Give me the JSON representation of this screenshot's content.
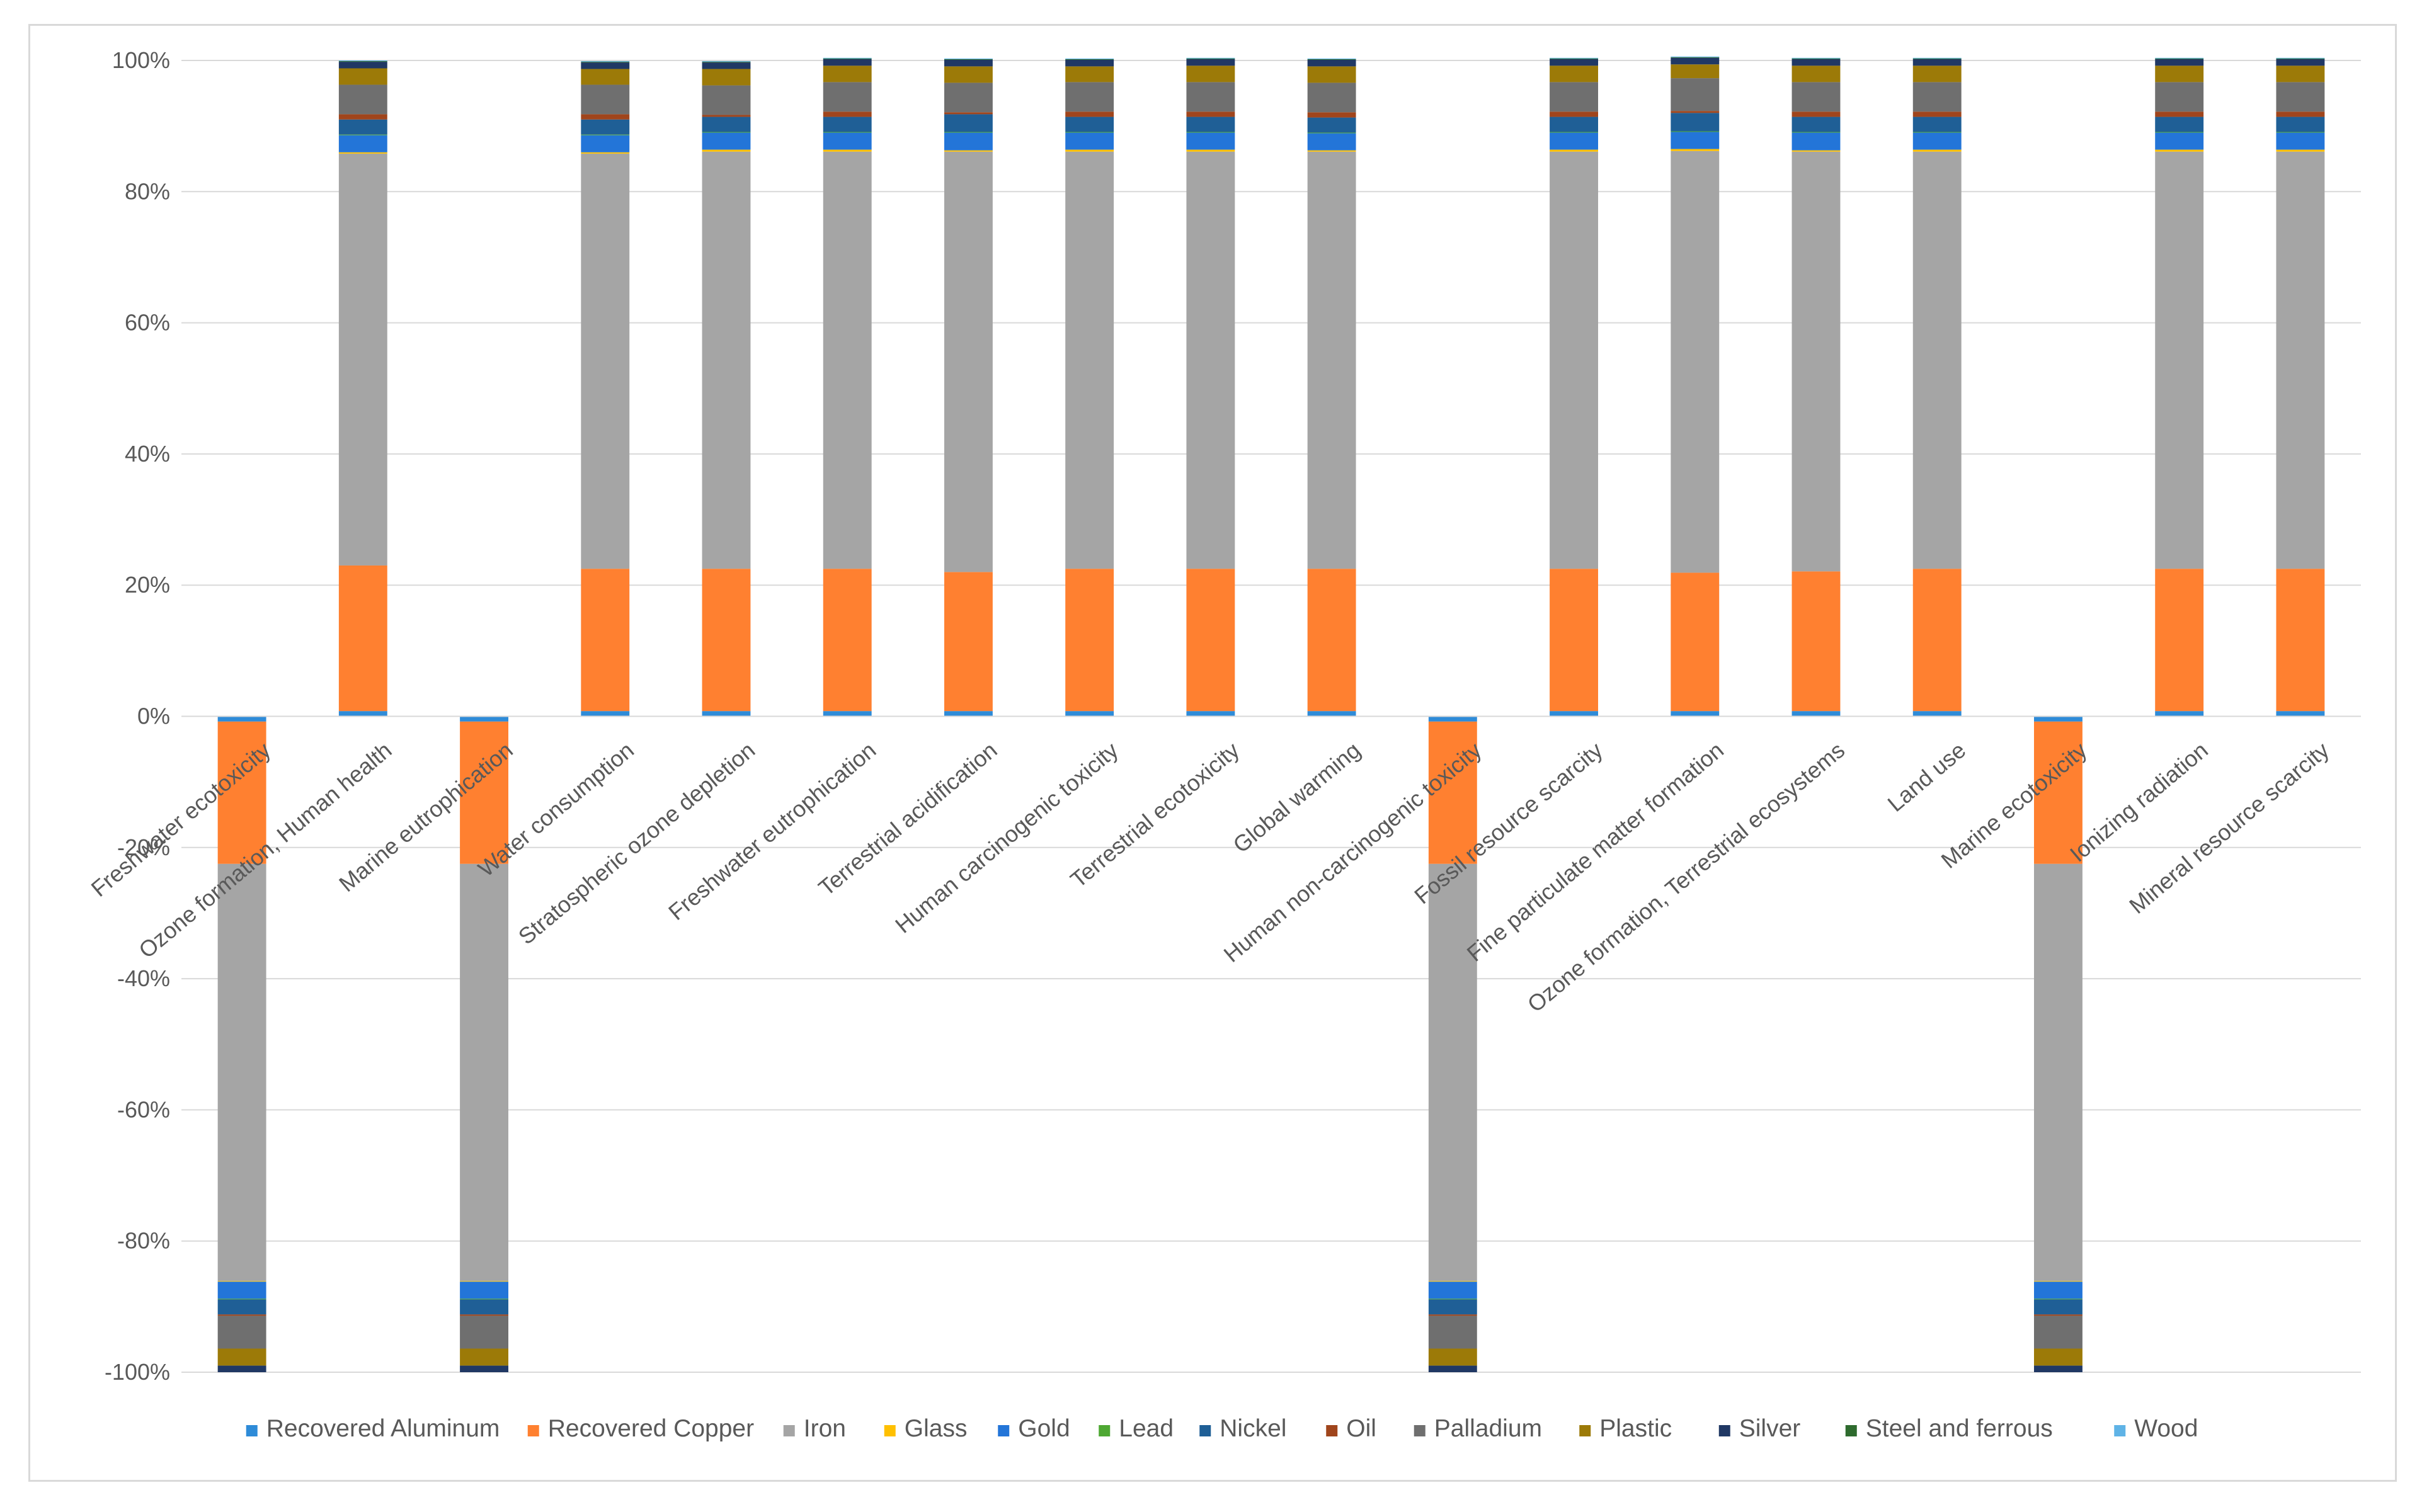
{
  "chart_data": {
    "type": "bar",
    "stacked": true,
    "normalized": true,
    "title": "",
    "xlabel": "",
    "ylabel": "",
    "ylim": [
      -100,
      100
    ],
    "y_ticks": [
      100,
      80,
      60,
      40,
      20,
      0,
      -20,
      -40,
      -60,
      -80,
      -100
    ],
    "y_tick_labels": [
      "100%",
      "80%",
      "60%",
      "40%",
      "20%",
      "0%",
      "-20%",
      "-40%",
      "-60%",
      "-80%",
      "-100%"
    ],
    "grid": true,
    "legend_position": "bottom",
    "categories": [
      "Freshwater ecotoxicity",
      "Ozone formation, Human health",
      "Marine eutrophication",
      "Water consumption",
      "Stratospheric ozone depletion",
      "Freshwater eutrophication",
      "Terrestrial acidification",
      "Human carcinogenic toxicity",
      "Terrestrial ecotoxicity",
      "Global warming",
      "Human non-carcinogenic toxicity",
      "Fossil resource scarcity",
      "Fine particulate matter formation",
      "Ozone formation, Terrestrial ecosystems",
      "Land use",
      "Marine ecotoxicity",
      "Ionizing radiation",
      "Mineral resource scarcity"
    ],
    "series": [
      {
        "name": "Recovered Aluminum",
        "color": "#2e8bd8",
        "values": [
          -0.8,
          0.8,
          -0.8,
          0.8,
          0.8,
          0.8,
          0.8,
          0.8,
          0.8,
          0.8,
          -0.8,
          0.8,
          0.8,
          0.8,
          0.8,
          -0.8,
          0.8,
          0.8
        ]
      },
      {
        "name": "Recovered Copper",
        "color": "#ff8030",
        "values": [
          -21.7,
          22.2,
          -21.7,
          21.7,
          21.7,
          21.7,
          21.2,
          21.7,
          21.7,
          21.7,
          -21.7,
          21.7,
          21.1,
          21.3,
          21.7,
          -21.7,
          21.7,
          21.7
        ]
      },
      {
        "name": "Iron",
        "color": "#a5a5a5",
        "values": [
          -63.6,
          62.8,
          -63.6,
          63.3,
          63.6,
          63.6,
          64.1,
          63.6,
          63.6,
          63.6,
          -63.6,
          63.6,
          64.3,
          64.0,
          63.6,
          -63.6,
          63.6,
          63.6
        ]
      },
      {
        "name": "Glass",
        "color": "#ffc000",
        "values": [
          -0.1,
          0.2,
          -0.1,
          0.2,
          0.3,
          0.3,
          0.2,
          0.3,
          0.3,
          0.2,
          -0.1,
          0.3,
          0.3,
          0.2,
          0.3,
          -0.1,
          0.3,
          0.3
        ]
      },
      {
        "name": "Gold",
        "color": "#2375d8",
        "values": [
          -2.6,
          2.6,
          -2.6,
          2.6,
          2.6,
          2.6,
          2.7,
          2.6,
          2.6,
          2.6,
          -2.6,
          2.6,
          2.6,
          2.7,
          2.6,
          -2.6,
          2.6,
          2.6
        ]
      },
      {
        "name": "Lead",
        "color": "#4ea833",
        "values": [
          -0.1,
          0.1,
          -0.1,
          0.1,
          0.1,
          0.1,
          0.1,
          0.1,
          0.1,
          0.1,
          -0.1,
          0.1,
          0.1,
          0.1,
          0.1,
          -0.1,
          0.1,
          0.1
        ]
      },
      {
        "name": "Nickel",
        "color": "#1f5f96",
        "values": [
          -2.3,
          2.3,
          -2.3,
          2.3,
          2.3,
          2.3,
          2.7,
          2.3,
          2.3,
          2.3,
          -2.3,
          2.3,
          2.8,
          2.3,
          2.3,
          -2.3,
          2.3,
          2.3
        ]
      },
      {
        "name": "Oil",
        "color": "#a0451c",
        "values": [
          -0.2,
          0.8,
          -0.2,
          0.8,
          0.3,
          0.8,
          0.3,
          0.8,
          0.8,
          0.8,
          -0.2,
          0.8,
          0.3,
          0.8,
          0.8,
          -0.2,
          0.8,
          0.8
        ]
      },
      {
        "name": "Palladium",
        "color": "#6f6f6f",
        "values": [
          -5.0,
          4.5,
          -5.0,
          4.5,
          4.5,
          4.5,
          4.5,
          4.5,
          4.5,
          4.5,
          -5.0,
          4.5,
          5.0,
          4.5,
          4.5,
          -5.0,
          4.5,
          4.5
        ]
      },
      {
        "name": "Plastic",
        "color": "#9c7a08",
        "values": [
          -2.6,
          2.5,
          -2.6,
          2.4,
          2.5,
          2.5,
          2.5,
          2.4,
          2.5,
          2.5,
          -2.6,
          2.5,
          2.1,
          2.5,
          2.5,
          -2.6,
          2.5,
          2.5
        ]
      },
      {
        "name": "Silver",
        "color": "#203864",
        "values": [
          -1.0,
          1.0,
          -1.0,
          1.0,
          1.0,
          1.0,
          1.0,
          1.0,
          1.0,
          1.0,
          -1.0,
          1.0,
          1.0,
          1.0,
          1.0,
          -1.0,
          1.0,
          1.0
        ]
      },
      {
        "name": "Steel and ferrous",
        "color": "#2e6b2e",
        "values": [
          0,
          0.1,
          0,
          0.1,
          0.1,
          0.1,
          0.1,
          0.1,
          0.1,
          0.1,
          0,
          0.1,
          0.1,
          0.1,
          0.1,
          0,
          0.1,
          0.1
        ]
      },
      {
        "name": "Wood",
        "color": "#5fb3e6",
        "values": [
          0,
          0.1,
          0,
          0.1,
          0.1,
          0.1,
          0.1,
          0.1,
          0.1,
          0.1,
          0,
          0.1,
          0.1,
          0.1,
          0.1,
          0,
          0.1,
          0.1
        ]
      }
    ]
  }
}
